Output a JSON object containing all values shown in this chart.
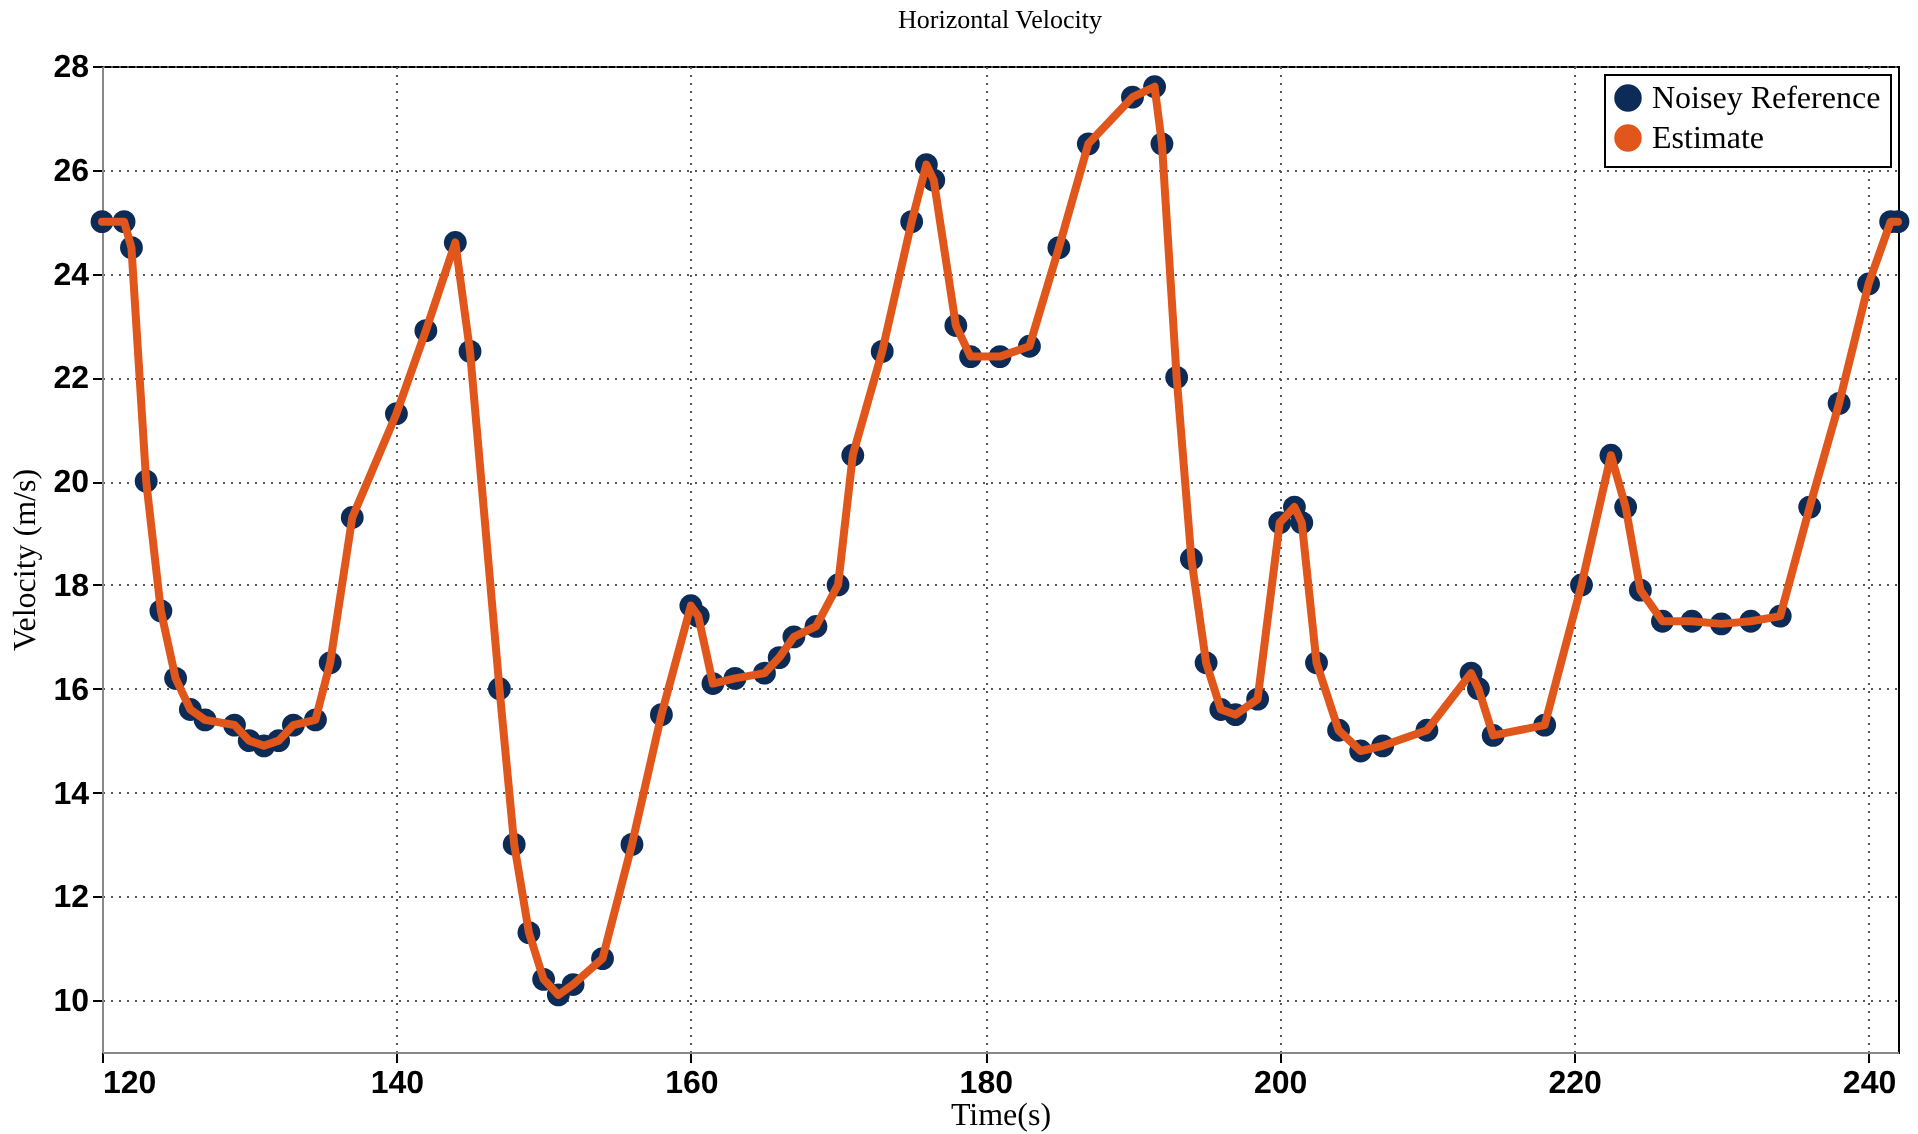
{
  "chart_data": {
    "type": "line",
    "title": "Horizontal Velocity",
    "xlabel": "Time(s)",
    "ylabel": "Velocity (m/s)",
    "x": [
      120,
      121.5,
      122,
      123,
      124,
      125,
      126,
      127,
      129,
      130,
      131,
      132,
      133,
      134.5,
      135.5,
      137,
      140,
      142,
      144,
      145,
      147,
      148,
      149,
      150,
      151,
      152,
      154,
      156,
      158,
      160,
      160.5,
      161.5,
      163,
      165,
      166,
      167,
      168.5,
      170,
      171,
      173,
      175,
      176,
      176.5,
      178,
      179,
      181,
      183,
      185,
      187,
      190,
      191.5,
      192,
      193,
      194,
      195,
      196,
      197,
      198.5,
      200,
      201,
      201.5,
      202.5,
      204,
      205.5,
      207,
      210,
      213,
      213.5,
      214.5,
      218,
      220.5,
      222.5,
      223.5,
      224.5,
      226,
      228,
      230,
      232,
      234,
      236,
      238,
      240,
      241.5,
      242
    ],
    "series": [
      {
        "name": "Noisey Reference",
        "type": "scatter",
        "marker": "circle",
        "color": "#0d2b57",
        "values": [
          25,
          25,
          24.5,
          20,
          17.5,
          16.2,
          15.6,
          15.4,
          15.3,
          15,
          14.9,
          15,
          15.3,
          15.4,
          16.5,
          19.3,
          21.3,
          22.9,
          24.6,
          22.5,
          16,
          13,
          11.3,
          10.4,
          10.1,
          10.3,
          10.8,
          13,
          15.5,
          17.6,
          17.4,
          16.1,
          16.2,
          16.3,
          16.6,
          17,
          17.2,
          18,
          20.5,
          22.5,
          25,
          26.1,
          25.8,
          23,
          22.4,
          22.4,
          22.6,
          24.5,
          26.5,
          27.4,
          27.6,
          26.5,
          22,
          18.5,
          16.5,
          15.6,
          15.5,
          15.8,
          19.2,
          19.5,
          19.2,
          16.5,
          15.2,
          14.8,
          14.9,
          15.2,
          16.3,
          16,
          15.1,
          15.3,
          18,
          20.5,
          19.5,
          17.9,
          17.3,
          17.3,
          17.25,
          17.3,
          17.4,
          19.5,
          21.5,
          23.8,
          25,
          25
        ]
      },
      {
        "name": "Estimate",
        "type": "line",
        "color": "#e0561b",
        "values": [
          25,
          25,
          24.5,
          20,
          17.5,
          16.2,
          15.6,
          15.4,
          15.3,
          15,
          14.9,
          15,
          15.3,
          15.4,
          16.5,
          19.3,
          21.3,
          22.9,
          24.6,
          22.5,
          16,
          13,
          11.3,
          10.4,
          10.1,
          10.3,
          10.8,
          13,
          15.5,
          17.6,
          17.4,
          16.1,
          16.2,
          16.3,
          16.6,
          17,
          17.2,
          18,
          20.5,
          22.5,
          25,
          26.1,
          25.8,
          23,
          22.4,
          22.4,
          22.6,
          24.5,
          26.5,
          27.4,
          27.6,
          26.5,
          22,
          18.5,
          16.5,
          15.6,
          15.5,
          15.8,
          19.2,
          19.5,
          19.2,
          16.5,
          15.2,
          14.8,
          14.9,
          15.2,
          16.3,
          16,
          15.1,
          15.3,
          18,
          20.5,
          19.5,
          17.9,
          17.3,
          17.3,
          17.25,
          17.3,
          17.4,
          19.5,
          21.5,
          23.8,
          25,
          25
        ]
      }
    ],
    "xlim": [
      120,
      242
    ],
    "xticks": [
      120,
      140,
      160,
      180,
      200,
      220,
      240
    ],
    "ylim": [
      9,
      28
    ],
    "yticks": [
      10,
      12,
      14,
      16,
      18,
      20,
      22,
      24,
      26,
      28
    ],
    "grid": true,
    "legend": "top right",
    "line_style": "solid"
  }
}
